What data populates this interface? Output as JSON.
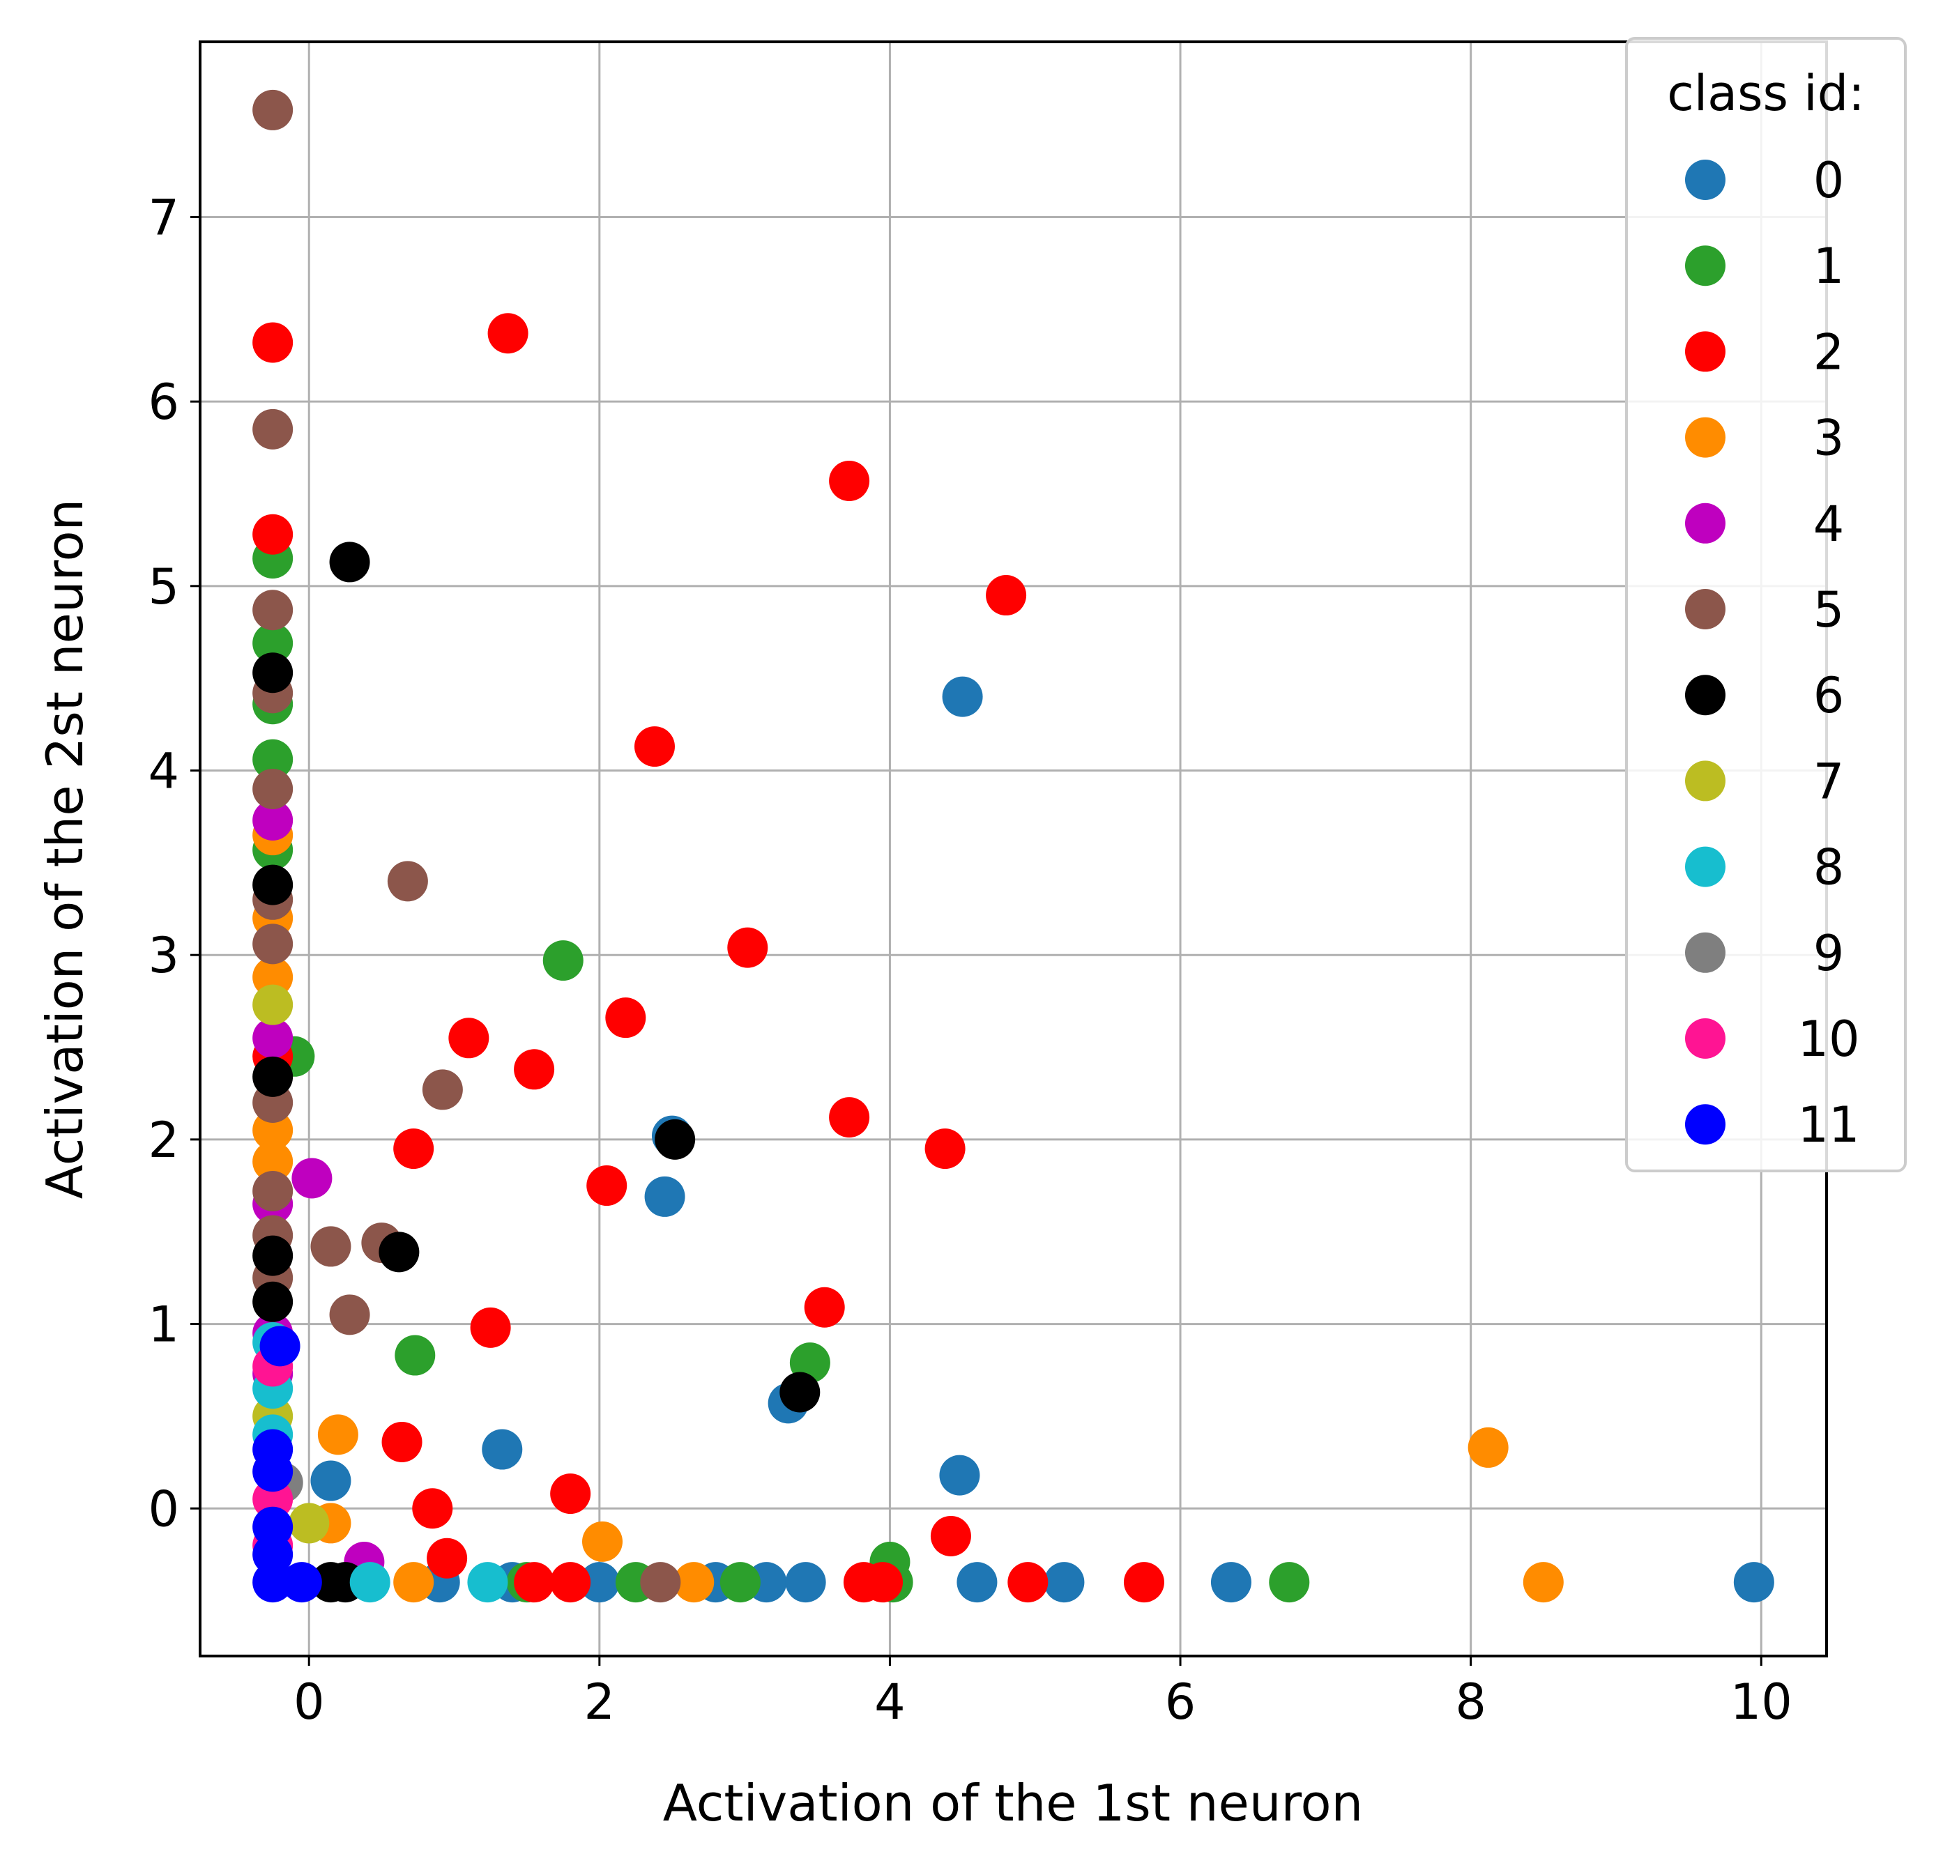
{
  "chart_data": {
    "type": "scatter",
    "xlabel": "Activation of the 1st neuron",
    "ylabel": "Activation of the 2st neuron",
    "xlim": [
      -0.75,
      10.45
    ],
    "ylim": [
      -0.8,
      7.95
    ],
    "xticks": [
      0,
      2,
      4,
      6,
      8,
      10
    ],
    "yticks": [
      0,
      1,
      2,
      3,
      4,
      5,
      6,
      7
    ],
    "grid": true,
    "legend": {
      "title": "class id:",
      "placement": "upper-right"
    },
    "series": [
      {
        "name": "0",
        "color": "#1f77b4",
        "points": [
          [
            4.5,
            4.4
          ],
          [
            2.5,
            2.02
          ],
          [
            2.45,
            1.69
          ],
          [
            3.3,
            0.57
          ],
          [
            1.33,
            0.32
          ],
          [
            4.48,
            0.18
          ],
          [
            0.15,
            0.15
          ],
          [
            0.9,
            -0.4
          ],
          [
            1.4,
            -0.4
          ],
          [
            2.0,
            -0.4
          ],
          [
            2.8,
            -0.4
          ],
          [
            3.15,
            -0.4
          ],
          [
            3.42,
            -0.4
          ],
          [
            4.6,
            -0.4
          ],
          [
            5.2,
            -0.4
          ],
          [
            6.35,
            -0.4
          ],
          [
            9.95,
            -0.4
          ]
        ]
      },
      {
        "name": "1",
        "color": "#2ca02c",
        "points": [
          [
            -0.25,
            5.15
          ],
          [
            -0.25,
            4.69
          ],
          [
            -0.25,
            4.36
          ],
          [
            -0.25,
            4.06
          ],
          [
            -0.25,
            3.57
          ],
          [
            -0.1,
            2.45
          ],
          [
            1.75,
            2.97
          ],
          [
            0.73,
            0.83
          ],
          [
            3.45,
            0.79
          ],
          [
            4.0,
            -0.29
          ],
          [
            1.5,
            -0.4
          ],
          [
            2.25,
            -0.4
          ],
          [
            2.97,
            -0.4
          ],
          [
            4.02,
            -0.4
          ],
          [
            6.75,
            -0.4
          ]
        ]
      },
      {
        "name": "2",
        "color": "#ff0000",
        "points": [
          [
            -0.25,
            6.32
          ],
          [
            -0.25,
            5.28
          ],
          [
            1.37,
            6.37
          ],
          [
            3.72,
            5.57
          ],
          [
            4.8,
            4.95
          ],
          [
            2.38,
            4.13
          ],
          [
            3.02,
            3.04
          ],
          [
            2.18,
            2.66
          ],
          [
            1.1,
            2.55
          ],
          [
            1.55,
            2.38
          ],
          [
            3.72,
            2.12
          ],
          [
            4.38,
            1.95
          ],
          [
            0.72,
            1.95
          ],
          [
            2.05,
            1.75
          ],
          [
            3.55,
            1.09
          ],
          [
            1.25,
            0.98
          ],
          [
            0.64,
            0.36
          ],
          [
            1.8,
            0.08
          ],
          [
            0.85,
            0.0
          ],
          [
            0.95,
            -0.27
          ],
          [
            4.42,
            -0.15
          ],
          [
            1.55,
            -0.4
          ],
          [
            1.8,
            -0.4
          ],
          [
            3.82,
            -0.4
          ],
          [
            3.95,
            -0.4
          ],
          [
            4.95,
            -0.4
          ],
          [
            5.75,
            -0.4
          ],
          [
            -0.25,
            2.45
          ]
        ]
      },
      {
        "name": "3",
        "color": "#ff8c00",
        "points": [
          [
            -0.25,
            3.65
          ],
          [
            -0.25,
            3.2
          ],
          [
            -0.25,
            2.88
          ],
          [
            -0.25,
            2.05
          ],
          [
            -0.25,
            1.88
          ],
          [
            0.2,
            0.4
          ],
          [
            0.15,
            -0.08
          ],
          [
            2.02,
            -0.18
          ],
          [
            0.72,
            -0.4
          ],
          [
            2.65,
            -0.4
          ],
          [
            8.12,
            0.33
          ],
          [
            8.5,
            -0.4
          ]
        ]
      },
      {
        "name": "4",
        "color": "#bf00bf",
        "points": [
          [
            -0.25,
            3.73
          ],
          [
            -0.25,
            2.55
          ],
          [
            0.02,
            1.79
          ],
          [
            -0.25,
            1.65
          ],
          [
            -0.25,
            0.95
          ],
          [
            -0.25,
            0.73
          ],
          [
            0.38,
            -0.29
          ]
        ]
      },
      {
        "name": "5",
        "color": "#8c564b",
        "points": [
          [
            -0.25,
            7.58
          ],
          [
            -0.25,
            5.85
          ],
          [
            -0.25,
            4.87
          ],
          [
            -0.25,
            4.42
          ],
          [
            -0.25,
            3.9
          ],
          [
            -0.25,
            3.3
          ],
          [
            -0.25,
            3.06
          ],
          [
            0.68,
            3.4
          ],
          [
            0.92,
            2.27
          ],
          [
            -0.25,
            2.2
          ],
          [
            -0.25,
            1.72
          ],
          [
            -0.25,
            1.48
          ],
          [
            0.15,
            1.42
          ],
          [
            0.5,
            1.44
          ],
          [
            -0.25,
            1.25
          ],
          [
            0.28,
            1.05
          ],
          [
            2.42,
            -0.4
          ]
        ]
      },
      {
        "name": "6",
        "color": "#000000",
        "points": [
          [
            0.28,
            5.13
          ],
          [
            -0.25,
            4.53
          ],
          [
            -0.25,
            3.38
          ],
          [
            -0.25,
            2.34
          ],
          [
            2.52,
            2.0
          ],
          [
            0.62,
            1.39
          ],
          [
            -0.25,
            1.37
          ],
          [
            -0.25,
            1.12
          ],
          [
            3.38,
            0.63
          ],
          [
            0.15,
            -0.4
          ],
          [
            0.25,
            -0.4
          ]
        ]
      },
      {
        "name": "7",
        "color": "#bcbd22",
        "points": [
          [
            -0.25,
            2.73
          ],
          [
            -0.25,
            0.5
          ],
          [
            0.0,
            -0.08
          ]
        ]
      },
      {
        "name": "8",
        "color": "#17becf",
        "points": [
          [
            -0.25,
            0.9
          ],
          [
            -0.25,
            0.65
          ],
          [
            -0.25,
            0.4
          ],
          [
            1.23,
            -0.4
          ],
          [
            0.42,
            -0.4
          ]
        ]
      },
      {
        "name": "9",
        "color": "#7f7f7f",
        "points": [
          [
            -0.18,
            0.14
          ]
        ]
      },
      {
        "name": "10",
        "color": "#ff1493",
        "points": [
          [
            -0.25,
            0.77
          ],
          [
            -0.25,
            0.05
          ],
          [
            -0.25,
            -0.2
          ]
        ]
      },
      {
        "name": "11",
        "color": "#0000ff",
        "points": [
          [
            -0.2,
            0.88
          ],
          [
            -0.25,
            0.32
          ],
          [
            -0.25,
            0.2
          ],
          [
            -0.25,
            -0.1
          ],
          [
            -0.25,
            -0.25
          ],
          [
            -0.25,
            -0.4
          ],
          [
            -0.05,
            -0.4
          ]
        ]
      }
    ]
  }
}
